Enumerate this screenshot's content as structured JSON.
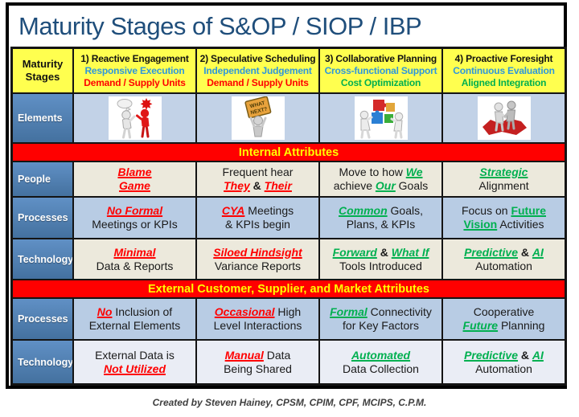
{
  "title": "Maturity Stages of S&OP / SIOP / IBP",
  "footer": "Created by Steven Hainey, CPSM, CPIM, CPF, MCIPS, C.P.M.",
  "colors": {
    "title_blue": "#1f4e7b",
    "header_yellow": "#ffff4f",
    "stage_sub_blue": "#2e97dc",
    "emphasis_red": "#ff0000",
    "emphasis_green": "#00b050",
    "label_blue": "#4f81bd",
    "band_red": "#ff0000",
    "band_text_yellow": "#ffff00",
    "row_beige": "#ece9dc",
    "row_blue": "#b8cce4",
    "row_light": "#eaedf5",
    "elements_bg": "#c2d2e7"
  },
  "header": {
    "label": "Maturity Stages",
    "stages": [
      {
        "name": "1) Reactive Engagement",
        "sub1": "Responsive Execution",
        "sub2": "Demand / Supply Units",
        "sub2_color": "#ff0000"
      },
      {
        "name": "2) Speculative Scheduling",
        "sub1": "Independent Judgement",
        "sub2": "Demand / Supply Units",
        "sub2_color": "#ff0000"
      },
      {
        "name": "3) Collaborative Planning",
        "sub1": "Cross-functional Support",
        "sub2": "Cost Optimization",
        "sub2_color": "#00b050"
      },
      {
        "name": "4) Proactive Foresight",
        "sub1": "Continuous Evaluation",
        "sub2": "Aligned Integration",
        "sub2_color": "#00b050"
      }
    ]
  },
  "elements_row": {
    "label": "Elements",
    "images": [
      {
        "name": "blame-conflict-figures"
      },
      {
        "name": "what-next-sign-figure",
        "sign_line1": "WHAT",
        "sign_line2": "NEXT?"
      },
      {
        "name": "puzzle-teamwork-figures"
      },
      {
        "name": "handshake-on-map-figures"
      }
    ]
  },
  "bands": [
    {
      "label": "Internal Attributes"
    },
    {
      "label": "External Customer, Supplier, and Market Attributes"
    }
  ],
  "rows": [
    {
      "label": "People",
      "bg": "beige",
      "section": 0,
      "cells": [
        [
          [
            {
              "t": "Blame",
              "s": "red"
            }
          ],
          [
            {
              "t": "Game",
              "s": "red"
            }
          ]
        ],
        [
          [
            {
              "t": "Frequent hear",
              "s": "k"
            }
          ],
          [
            {
              "t": "They",
              "s": "red"
            },
            {
              "t": " & ",
              "s": "kb"
            },
            {
              "t": "Their",
              "s": "red"
            }
          ]
        ],
        [
          [
            {
              "t": "Move to how ",
              "s": "k"
            },
            {
              "t": "We",
              "s": "green"
            }
          ],
          [
            {
              "t": "achieve ",
              "s": "k"
            },
            {
              "t": "Our",
              "s": "green"
            },
            {
              "t": " Goals",
              "s": "k"
            }
          ]
        ],
        [
          [
            {
              "t": "Strategic",
              "s": "green"
            }
          ],
          [
            {
              "t": "Alignment",
              "s": "k"
            }
          ]
        ]
      ]
    },
    {
      "label": "Processes",
      "bg": "blue",
      "section": 0,
      "cells": [
        [
          [
            {
              "t": "No Formal",
              "s": "red"
            }
          ],
          [
            {
              "t": "Meetings or KPIs",
              "s": "k"
            }
          ]
        ],
        [
          [
            {
              "t": "CYA",
              "s": "red"
            },
            {
              "t": " Meetings",
              "s": "k"
            }
          ],
          [
            {
              "t": "& KPIs begin",
              "s": "k"
            }
          ]
        ],
        [
          [
            {
              "t": "Common",
              "s": "green"
            },
            {
              "t": " Goals,",
              "s": "k"
            }
          ],
          [
            {
              "t": "Plans, & KPIs",
              "s": "k"
            }
          ]
        ],
        [
          [
            {
              "t": "Focus on ",
              "s": "k"
            },
            {
              "t": "Future",
              "s": "greenu"
            }
          ],
          [
            {
              "t": "Vision",
              "s": "greenu"
            },
            {
              "t": " Activities",
              "s": "k"
            }
          ]
        ]
      ]
    },
    {
      "label": "Technology",
      "bg": "beige",
      "section": 0,
      "cells": [
        [
          [
            {
              "t": "Minimal",
              "s": "red"
            }
          ],
          [
            {
              "t": "Data & Reports",
              "s": "k"
            }
          ]
        ],
        [
          [
            {
              "t": "Siloed Hindsight",
              "s": "red"
            }
          ],
          [
            {
              "t": "Variance Reports",
              "s": "k"
            }
          ]
        ],
        [
          [
            {
              "t": "Forward",
              "s": "green"
            },
            {
              "t": " & ",
              "s": "kb"
            },
            {
              "t": "What If",
              "s": "green"
            }
          ],
          [
            {
              "t": "Tools Introduced",
              "s": "k"
            }
          ]
        ],
        [
          [
            {
              "t": "Predictive",
              "s": "green"
            },
            {
              "t": " & ",
              "s": "kb"
            },
            {
              "t": "AI",
              "s": "green"
            }
          ],
          [
            {
              "t": "Automation",
              "s": "k"
            }
          ]
        ]
      ]
    },
    {
      "label": "Processes",
      "bg": "blue",
      "section": 1,
      "cells": [
        [
          [
            {
              "t": "No",
              "s": "red"
            },
            {
              "t": " Inclusion of",
              "s": "k"
            }
          ],
          [
            {
              "t": "External Elements",
              "s": "k"
            }
          ]
        ],
        [
          [
            {
              "t": "Occasional",
              "s": "red"
            },
            {
              "t": " High",
              "s": "k"
            }
          ],
          [
            {
              "t": "Level Interactions",
              "s": "k"
            }
          ]
        ],
        [
          [
            {
              "t": "Formal",
              "s": "green"
            },
            {
              "t": " Connectivity",
              "s": "k"
            }
          ],
          [
            {
              "t": "for Key Factors",
              "s": "k"
            }
          ]
        ],
        [
          [
            {
              "t": "Cooperative",
              "s": "k"
            }
          ],
          [
            {
              "t": "Future",
              "s": "green"
            },
            {
              "t": " Planning",
              "s": "k"
            }
          ]
        ]
      ]
    },
    {
      "label": "Technology",
      "bg": "light",
      "section": 1,
      "cells": [
        [
          [
            {
              "t": "External Data is",
              "s": "k"
            }
          ],
          [
            {
              "t": "Not Utilized",
              "s": "red"
            }
          ]
        ],
        [
          [
            {
              "t": "Manual",
              "s": "red"
            },
            {
              "t": " Data",
              "s": "k"
            }
          ],
          [
            {
              "t": "Being Shared",
              "s": "k"
            }
          ]
        ],
        [
          [
            {
              "t": "Automated",
              "s": "green"
            }
          ],
          [
            {
              "t": "Data Collection",
              "s": "k"
            }
          ]
        ],
        [
          [
            {
              "t": "Predictive",
              "s": "green"
            },
            {
              "t": " & ",
              "s": "kb"
            },
            {
              "t": "AI",
              "s": "green"
            }
          ],
          [
            {
              "t": "Automation",
              "s": "k"
            }
          ]
        ]
      ]
    }
  ]
}
